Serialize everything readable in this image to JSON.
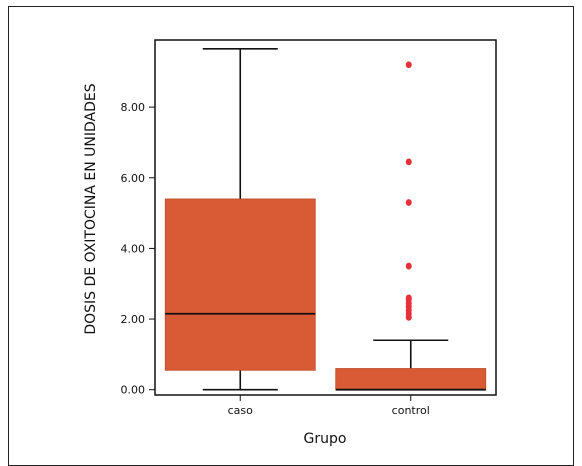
{
  "chart_data": {
    "type": "box",
    "xlabel": "Grupo",
    "ylabel": "DOSIS DE OXITOCINA EN UNIDADES",
    "ylim": [
      -0.15,
      9.9
    ],
    "yticks": [
      "0.00",
      "2.00",
      "4.00",
      "6.00",
      "8.00"
    ],
    "ytick_values": [
      0,
      2,
      4,
      6,
      8
    ],
    "grid": false,
    "colors": {
      "box": "#d95b35",
      "outlier": "#e8303a",
      "line": "#111111"
    },
    "categories": [
      "caso",
      "control"
    ],
    "boxes": [
      {
        "category": "caso",
        "min": 0.0,
        "q1": 0.55,
        "median": 2.15,
        "q3": 5.4,
        "max": 9.65,
        "outliers": []
      },
      {
        "category": "control",
        "min": 0.0,
        "q1": 0.0,
        "median": 0.0,
        "q3": 0.6,
        "max": 1.4,
        "outliers": [
          2.05,
          2.15,
          2.25,
          2.35,
          2.45,
          2.55,
          2.6,
          3.5,
          5.3,
          6.45,
          9.2
        ]
      }
    ]
  }
}
